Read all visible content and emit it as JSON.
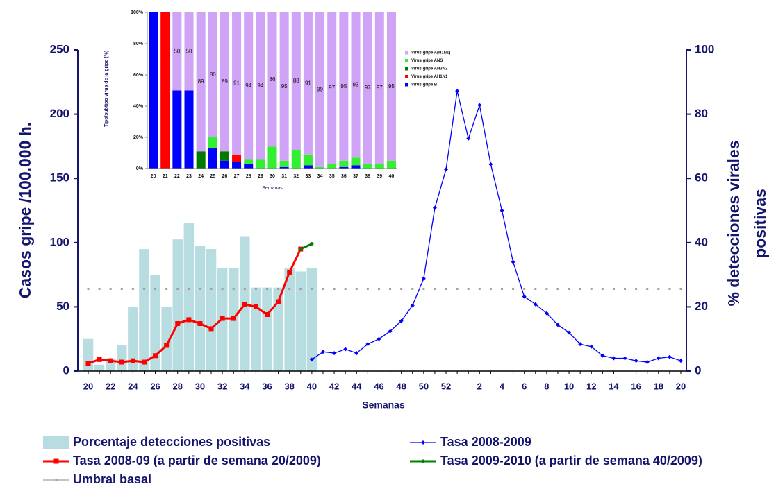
{
  "chart_data": [
    {
      "type": "combo",
      "xlabel": "Semanas",
      "ylabel": "Casos gripe /100.000 h.",
      "y2label": [
        "% detecciones virales",
        "positivas"
      ],
      "categories": [
        20,
        null,
        22,
        null,
        24,
        null,
        26,
        null,
        28,
        null,
        30,
        null,
        32,
        null,
        34,
        null,
        36,
        null,
        38,
        null,
        40,
        null,
        42,
        null,
        44,
        null,
        46,
        null,
        48,
        null,
        50,
        null,
        52,
        null,
        null,
        2,
        null,
        4,
        null,
        6,
        null,
        8,
        null,
        10,
        null,
        12,
        null,
        14,
        null,
        16,
        null,
        18,
        null,
        20
      ],
      "ylim": [
        0,
        250
      ],
      "yticks": [
        0,
        50,
        100,
        150,
        200,
        250
      ],
      "y2lim": [
        0,
        100
      ],
      "y2ticks": [
        0,
        20,
        40,
        60,
        80,
        100
      ],
      "legend": "bottom",
      "series": [
        {
          "name": "Porcentaje detecciones positivas",
          "kind": "bar",
          "axis": "y2",
          "color": "#b7dde0",
          "values": [
            10,
            2,
            4,
            8,
            20,
            38,
            30,
            20,
            41,
            46,
            39,
            38,
            32,
            32,
            42,
            26,
            26,
            26,
            32,
            31,
            32,
            null,
            null,
            null,
            null,
            null,
            null,
            null,
            null,
            null,
            null,
            null,
            null,
            null,
            null,
            null,
            null,
            null,
            null,
            null,
            null,
            null,
            null,
            null,
            null,
            null,
            null,
            null,
            null,
            null,
            null,
            null,
            null,
            null
          ]
        },
        {
          "name": "Tasa 2008-2009",
          "kind": "line",
          "marker": "diamond",
          "color": "#0000ff",
          "values": [
            null,
            null,
            null,
            null,
            null,
            null,
            null,
            null,
            null,
            null,
            null,
            null,
            null,
            null,
            null,
            null,
            null,
            null,
            null,
            null,
            9,
            15,
            14,
            17,
            14,
            21,
            25,
            31,
            39,
            51,
            72,
            127,
            157,
            218,
            181,
            207,
            161,
            125,
            85,
            58,
            52,
            45,
            36,
            30,
            21,
            19,
            12,
            10,
            10,
            8,
            7,
            10,
            11,
            8
          ]
        },
        {
          "name": "Tasa 2008-09 (a partir de semana 20/2009)",
          "kind": "line",
          "marker": "square",
          "color": "#ff0000",
          "values": [
            6,
            9,
            8,
            7,
            8,
            7,
            12,
            20,
            37,
            40,
            37,
            33,
            41,
            41,
            52,
            50,
            44,
            54,
            77,
            95,
            null,
            null,
            null,
            null,
            null,
            null,
            null,
            null,
            null,
            null,
            null,
            null,
            null,
            null,
            null,
            null,
            null,
            null,
            null,
            null,
            null,
            null,
            null,
            null,
            null,
            null,
            null,
            null,
            null,
            null,
            null,
            null,
            null,
            null
          ]
        },
        {
          "name": "Tasa 2009-2010 (a partir de semana 40/2009)",
          "kind": "line",
          "marker": "diamond",
          "color": "#008000",
          "values": [
            null,
            null,
            null,
            null,
            null,
            null,
            null,
            null,
            null,
            null,
            null,
            null,
            null,
            null,
            null,
            null,
            null,
            null,
            null,
            95,
            99,
            null,
            null,
            null,
            null,
            null,
            null,
            null,
            null,
            null,
            null,
            null,
            null,
            null,
            null,
            null,
            null,
            null,
            null,
            null,
            null,
            null,
            null,
            null,
            null,
            null,
            null,
            null,
            null,
            null,
            null,
            null,
            null,
            null
          ]
        },
        {
          "name": "Umbral basal",
          "kind": "line",
          "marker": "dot",
          "color": "#a0a0a0",
          "values": [
            64,
            64,
            64,
            64,
            64,
            64,
            64,
            64,
            64,
            64,
            64,
            64,
            64,
            64,
            64,
            64,
            64,
            64,
            64,
            64,
            64,
            64,
            64,
            64,
            64,
            64,
            64,
            64,
            64,
            64,
            64,
            64,
            64,
            64,
            64,
            64,
            64,
            64,
            64,
            64,
            64,
            64,
            64,
            64,
            64,
            64,
            64,
            64,
            64,
            64,
            64,
            64,
            64,
            64
          ]
        }
      ]
    },
    {
      "type": "stacked_bar",
      "xlabel": "Semanas",
      "ylabel": "Tipo/subtipo virus de la gripe (%)",
      "categories": [
        20,
        21,
        22,
        23,
        24,
        25,
        26,
        27,
        28,
        29,
        30,
        31,
        32,
        33,
        34,
        35,
        36,
        37,
        38,
        39,
        40
      ],
      "ylim": [
        0,
        100
      ],
      "yticks": [
        {
          "value": 0,
          "label": "0%"
        },
        {
          "value": 20,
          "label": "20%"
        },
        {
          "value": 40,
          "label": "40%"
        },
        {
          "value": 60,
          "label": "60%"
        },
        {
          "value": 80,
          "label": "80%"
        },
        {
          "value": 100,
          "label": "100%"
        }
      ],
      "legend": "right",
      "series": [
        {
          "name": "Virus gripe B",
          "color": "#0000ff",
          "values": [
            100,
            0,
            50,
            50,
            0,
            13,
            5,
            4,
            3,
            0,
            0,
            1,
            0,
            2,
            0,
            0,
            1,
            2,
            0,
            0,
            0
          ]
        },
        {
          "name": "Virus gripe AH1N1",
          "color": "#ff0000",
          "values": [
            0,
            100,
            0,
            0,
            0,
            0,
            0,
            5,
            0,
            0,
            0,
            0,
            0,
            0,
            0,
            0,
            0,
            0,
            0,
            0,
            0
          ]
        },
        {
          "name": "Virus gripe AH3N2",
          "color": "#007a00",
          "values": [
            0,
            0,
            0,
            0,
            11,
            0,
            6,
            0,
            0,
            0,
            0,
            0,
            0,
            0,
            0,
            0,
            0,
            0,
            0,
            0,
            0
          ]
        },
        {
          "name": "Virus gripe ANS",
          "color": "#33ee33",
          "values": [
            0,
            0,
            0,
            0,
            0,
            7,
            0,
            0,
            3,
            6,
            14,
            4,
            12,
            7,
            1,
            3,
            4,
            5,
            3,
            3,
            5
          ]
        },
        {
          "name": "Virus gripe A(H1N1)",
          "color": "#cfa3f5",
          "labels": true,
          "values": [
            null,
            null,
            50,
            50,
            89,
            80,
            89,
            91,
            94,
            94,
            86,
            95,
            88,
            91,
            99,
            97,
            95,
            93,
            97,
            97,
            95
          ]
        }
      ]
    }
  ]
}
